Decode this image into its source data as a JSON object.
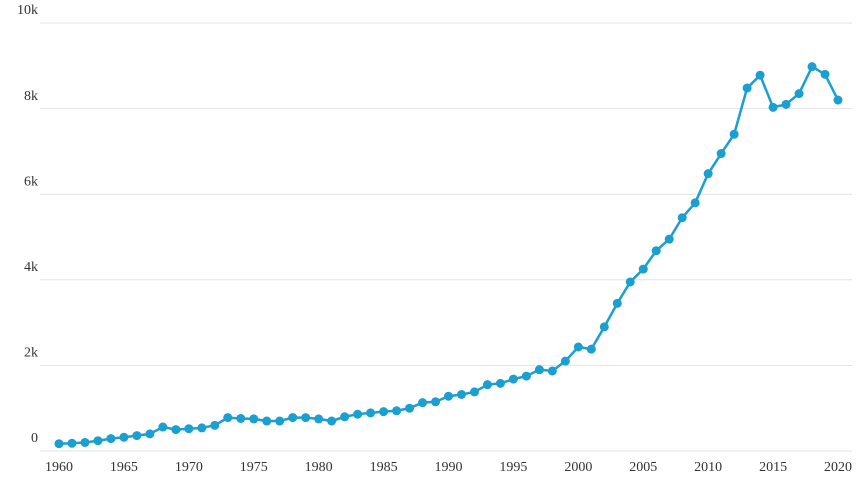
{
  "chart_data": {
    "type": "line",
    "x": [
      1960,
      1961,
      1962,
      1963,
      1964,
      1965,
      1966,
      1967,
      1968,
      1969,
      1970,
      1971,
      1972,
      1973,
      1974,
      1975,
      1976,
      1977,
      1978,
      1979,
      1980,
      1981,
      1982,
      1983,
      1984,
      1985,
      1986,
      1987,
      1988,
      1989,
      1990,
      1991,
      1992,
      1993,
      1994,
      1995,
      1996,
      1997,
      1998,
      1999,
      2000,
      2001,
      2002,
      2003,
      2004,
      2005,
      2006,
      2007,
      2008,
      2009,
      2010,
      2011,
      2012,
      2013,
      2014,
      2015,
      2016,
      2017,
      2018,
      2019,
      2020
    ],
    "series": [
      {
        "color": "#1a9fd0",
        "values": [
          170,
          180,
          200,
          240,
          290,
          320,
          360,
          400,
          560,
          500,
          520,
          540,
          600,
          780,
          760,
          750,
          700,
          700,
          780,
          780,
          750,
          700,
          800,
          860,
          890,
          920,
          940,
          1000,
          1130,
          1150,
          1280,
          1320,
          1380,
          1550,
          1580,
          1680,
          1750,
          1900,
          1870,
          2100,
          2430,
          2380,
          2900,
          3450,
          3950,
          4250,
          4680,
          4950,
          5450,
          5800,
          6480,
          6950,
          7400,
          8480,
          8780,
          8030,
          8100,
          8350,
          8980,
          8800,
          8200
        ]
      }
    ],
    "xlim": [
      1960,
      2020
    ],
    "xticks": [
      1960,
      1965,
      1970,
      1975,
      1980,
      1985,
      1990,
      1995,
      2000,
      2005,
      2010,
      2015,
      2020
    ],
    "ylim": [
      0,
      10000
    ],
    "yticks": [
      0,
      {
        "value": 2000,
        "label": "2k"
      },
      {
        "value": 4000,
        "label": "4k"
      },
      {
        "value": 6000,
        "label": "6k"
      },
      {
        "value": 8000,
        "label": "8k"
      },
      {
        "value": 10000,
        "label": "10k"
      }
    ],
    "grid": true
  }
}
